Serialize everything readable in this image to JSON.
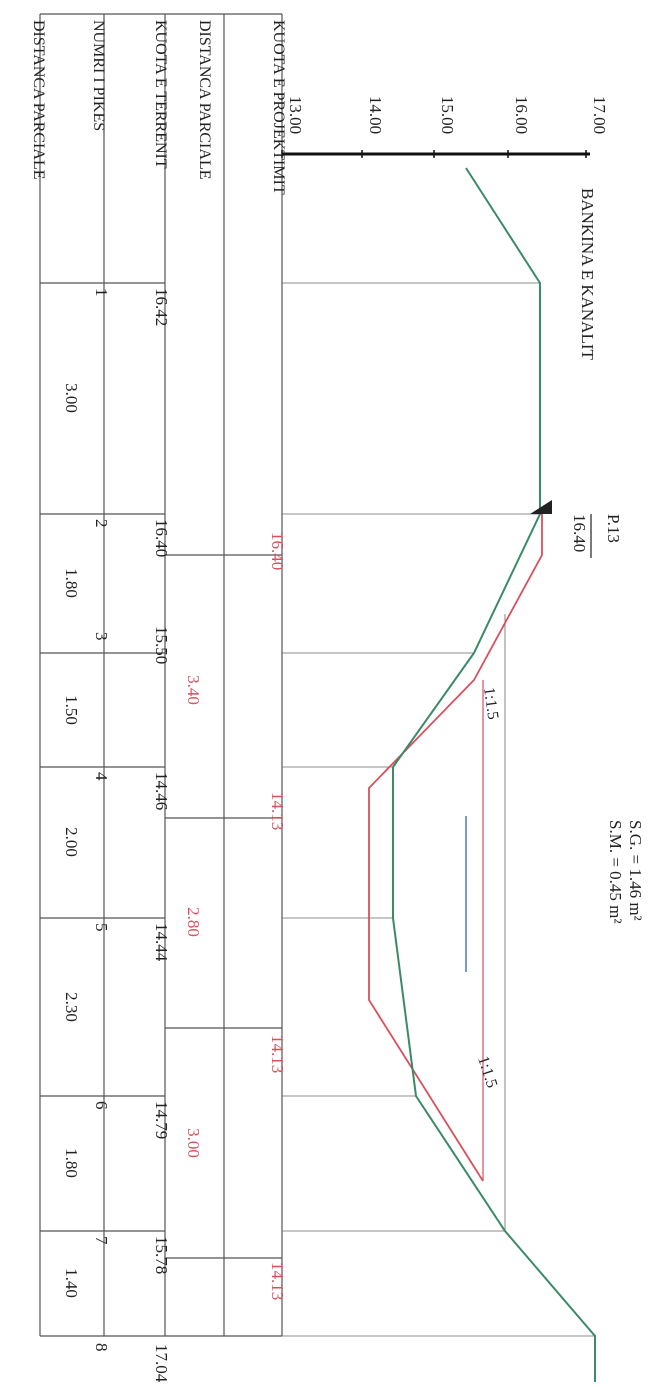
{
  "title": "BANKINA E KANALIT",
  "station": {
    "label": "P.13",
    "elevation": "16.40"
  },
  "areas": [
    "S.G. = 1.46 m²",
    "S.M. = 0.45 m²"
  ],
  "slopes": [
    "1:1.5",
    "1:1.5"
  ],
  "colors": {
    "ground": "#3a8a68",
    "design": "#d8505c",
    "water": "#6a8fd0",
    "ink": "#2a2a2a",
    "grid": "#555555"
  },
  "elevation_axis": {
    "ticks": [
      "13.00",
      "14.00",
      "15.00",
      "16.00",
      "17.00"
    ]
  },
  "row_headers": {
    "design_elevation": "KUOTA E PROJEKTIMIT",
    "design_distance": "DISTANCA PARCIALE",
    "ground_elevation": "KUOTA E TERRENIT",
    "point_number": "NUMRI I PIKES",
    "partial_distance": "DISTANCA PARCIALE"
  },
  "points": [
    {
      "n": "1",
      "elevation": "16.42"
    },
    {
      "n": "2",
      "elevation": "16.40"
    },
    {
      "n": "3",
      "elevation": "15.50"
    },
    {
      "n": "4",
      "elevation": "14.46"
    },
    {
      "n": "5",
      "elevation": "14.44"
    },
    {
      "n": "6",
      "elevation": "14.79"
    },
    {
      "n": "7",
      "elevation": "15.78"
    },
    {
      "n": "8",
      "elevation": "17.04"
    }
  ],
  "partial_distances": [
    "3.00",
    "1.80",
    "1.50",
    "2.00",
    "2.30",
    "1.80",
    "1.40"
  ],
  "design_elevations": [
    "16.40",
    "14.13",
    "14.13",
    "14.13"
  ],
  "design_distances": [
    "3.40",
    "2.80",
    "3.00"
  ]
}
